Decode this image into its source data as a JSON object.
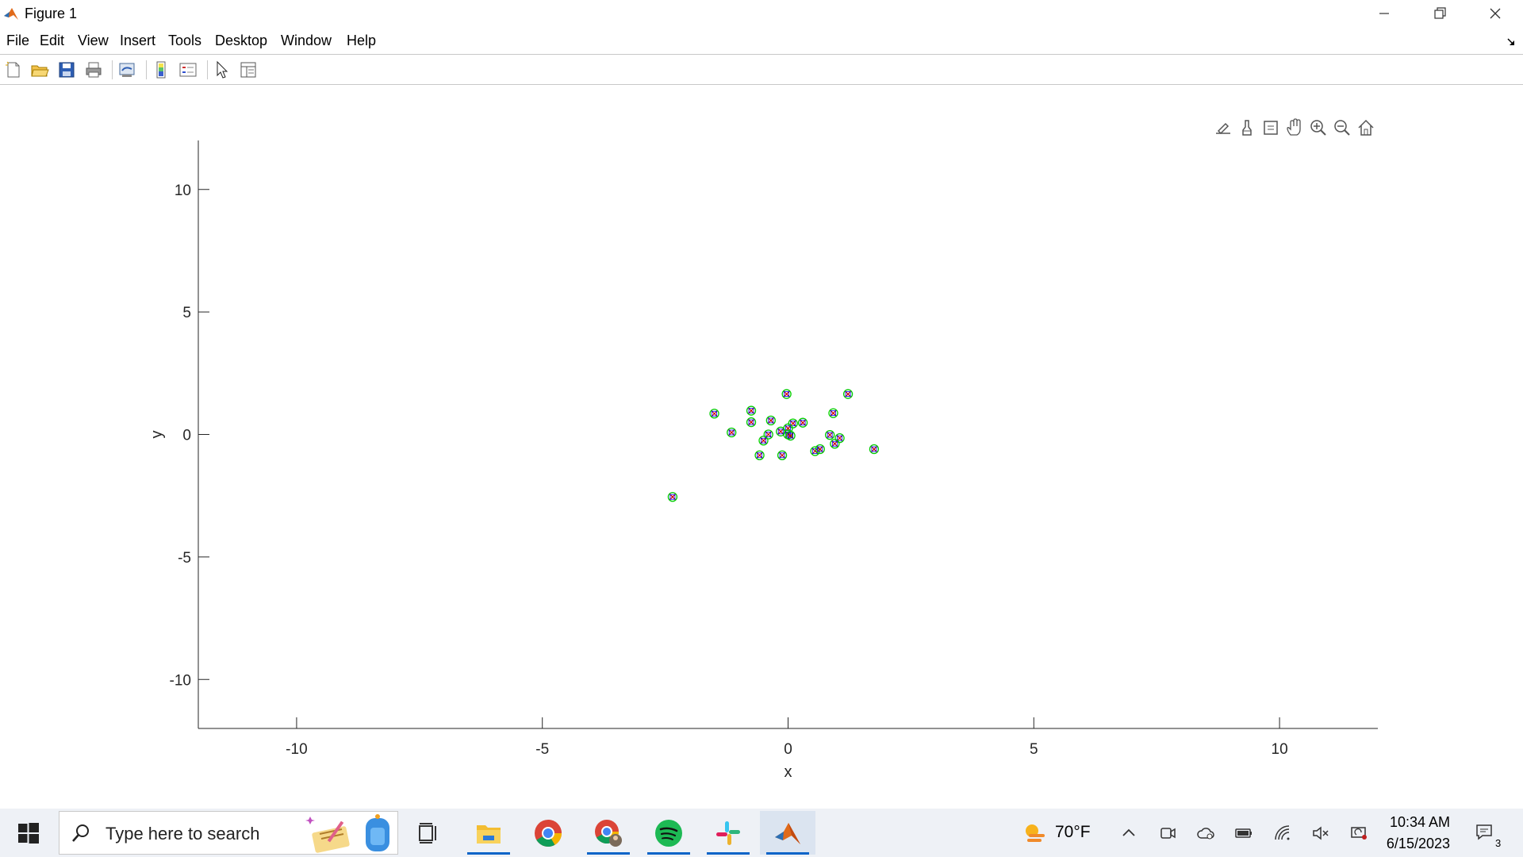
{
  "window": {
    "title": "Figure 1"
  },
  "menu": {
    "items": [
      "File",
      "Edit",
      "View",
      "Insert",
      "Tools",
      "Desktop",
      "Window",
      "Help"
    ]
  },
  "toolbar": {
    "icons": [
      "new-figure-icon",
      "open-file-icon",
      "save-icon",
      "print-icon",
      "link-plot-icon",
      "colorbar-icon",
      "legend-icon",
      "edit-plot-icon",
      "property-inspector-icon"
    ]
  },
  "axes_toolbar": {
    "icons": [
      "export-icon",
      "brush-icon",
      "data-tips-icon",
      "pan-icon",
      "zoom-in-icon",
      "zoom-out-icon",
      "home-icon"
    ]
  },
  "chart_data": {
    "type": "scatter",
    "title": "",
    "xlabel": "x",
    "ylabel": "y",
    "xlim": [
      -12,
      12
    ],
    "ylim": [
      -12,
      12
    ],
    "xticks": [
      -10,
      -5,
      0,
      5,
      10
    ],
    "yticks": [
      -10,
      -5,
      0,
      5,
      10
    ],
    "xtick_labels": [
      "-10",
      "-5",
      "0",
      "5",
      "10"
    ],
    "ytick_labels": [
      "-10",
      "-5",
      "0",
      "5",
      "10"
    ],
    "grid": false,
    "colors": {
      "circle": "#00cc00",
      "cross": "#cc0000",
      "square": "#0000ff"
    },
    "points": [
      [
        -0.03,
        1.65
      ],
      [
        1.22,
        1.65
      ],
      [
        -1.5,
        0.85
      ],
      [
        -0.75,
        0.97
      ],
      [
        0.92,
        0.87
      ],
      [
        -0.75,
        0.5
      ],
      [
        -0.35,
        0.57
      ],
      [
        0.1,
        0.45
      ],
      [
        0.3,
        0.48
      ],
      [
        -0.15,
        0.12
      ],
      [
        0.0,
        0.25
      ],
      [
        -1.15,
        0.08
      ],
      [
        -0.4,
        0.0
      ],
      [
        0.0,
        0.0
      ],
      [
        0.05,
        -0.05
      ],
      [
        0.85,
        -0.02
      ],
      [
        1.05,
        -0.15
      ],
      [
        0.95,
        -0.38
      ],
      [
        -0.5,
        -0.25
      ],
      [
        0.55,
        -0.68
      ],
      [
        0.65,
        -0.6
      ],
      [
        1.75,
        -0.6
      ],
      [
        -0.58,
        -0.85
      ],
      [
        -0.12,
        -0.85
      ],
      [
        -2.35,
        -2.55
      ]
    ]
  },
  "taskbar": {
    "search_placeholder": "Type here to search",
    "apps": [
      "task-view-icon",
      "file-explorer-icon",
      "chrome-icon",
      "chrome-profile-icon",
      "spotify-icon",
      "slack-icon",
      "matlab-icon"
    ],
    "weather": "70°F",
    "time": "10:34 AM",
    "date": "6/15/2023",
    "notifications": "3"
  }
}
